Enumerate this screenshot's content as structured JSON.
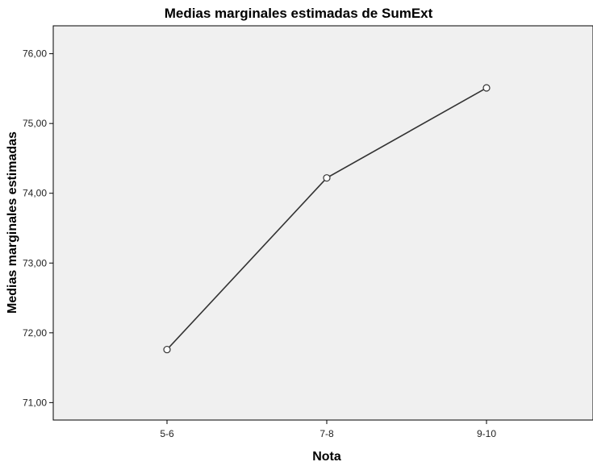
{
  "chart_data": {
    "type": "line",
    "title": "Medias marginales estimadas de SumExt",
    "xlabel": "Nota",
    "ylabel": "Medias marginales estimadas",
    "categories": [
      "5-6",
      "7-8",
      "9-10"
    ],
    "series": [
      {
        "values": [
          71.76,
          74.22,
          75.51
        ]
      }
    ],
    "ylim": [
      70.75,
      76.4
    ],
    "yticks": [
      71,
      72,
      73,
      74,
      75,
      76
    ],
    "ytick_labels": [
      "71,00",
      "72,00",
      "73,00",
      "74,00",
      "75,00",
      "76,00"
    ],
    "grid": false,
    "colors": {
      "plot_background": "#f0f0f0",
      "line": "#333333",
      "marker_fill": "#ffffff"
    }
  }
}
